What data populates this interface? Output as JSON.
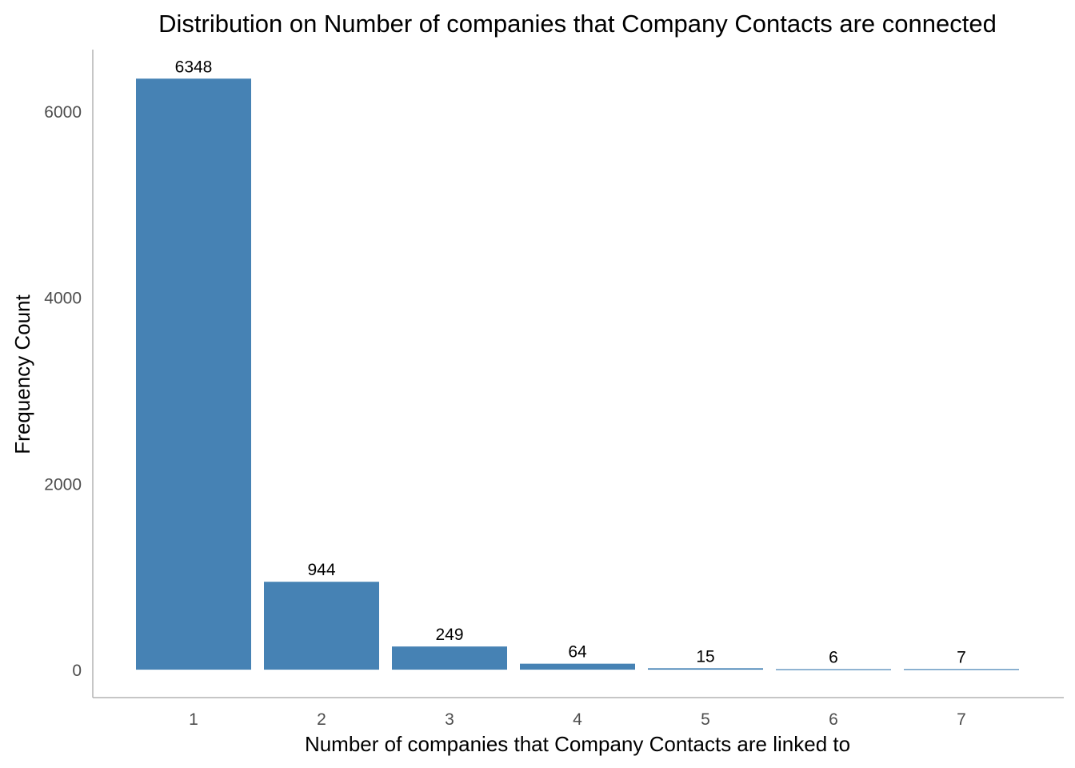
{
  "chart_data": {
    "type": "bar",
    "title": "Distribution on Number of companies that Company Contacts are connected",
    "xlabel": "Number of companies that Company Contacts are linked to",
    "ylabel": "Frequency Count",
    "categories": [
      "1",
      "2",
      "3",
      "4",
      "5",
      "6",
      "7"
    ],
    "values": [
      6348,
      944,
      249,
      64,
      15,
      6,
      7
    ],
    "data_labels": [
      "6348",
      "944",
      "249",
      "64",
      "15",
      "6",
      "7"
    ],
    "y_ticks": [
      0,
      2000,
      4000,
      6000
    ],
    "y_tick_labels": [
      "0",
      "2000",
      "4000",
      "6000"
    ],
    "ylim": [
      -300,
      6660
    ],
    "bar_color": "#4682b4",
    "grid": false,
    "legend": "none"
  }
}
